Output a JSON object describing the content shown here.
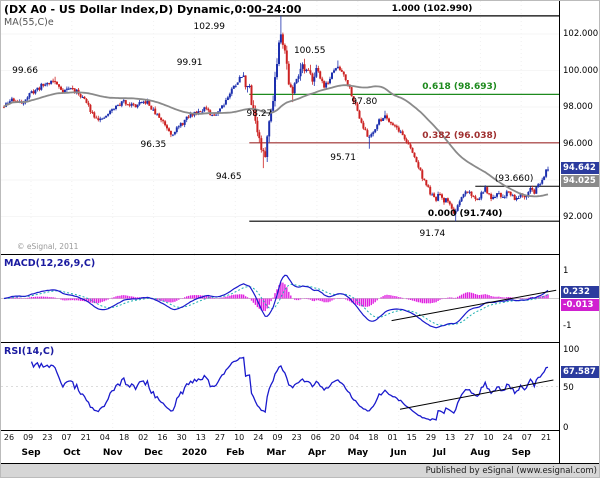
{
  "title": "(DX A0 - US Dollar Index,D) Dynamic,0:00-24:00",
  "overlays": {
    "ma_label": "MA(55,C)e"
  },
  "panels": {
    "macd_label": "MACD(12,26,9,C)",
    "rsi_label": "RSI(14,C)"
  },
  "watermark": "© eSignal, 2011",
  "footer": {
    "published": "Published by eSignal (www.esignal.com)"
  },
  "colors": {
    "up": "#1c2fae",
    "down": "#cc2222",
    "ma": "#8a8a8a",
    "macd_line": "#1a1acc",
    "macd_signal": "#1db0b0",
    "macd_hist": "#e020e0",
    "rsi_line": "#1a1acc",
    "badge_blue": "#2b3b9e",
    "badge_gray": "#8a8a8a",
    "badge_magenta": "#d020d0"
  },
  "axes": {
    "price_ticks": [
      {
        "label": "102.000",
        "value": 102
      },
      {
        "label": "100.000",
        "value": 100
      },
      {
        "label": "98.000",
        "value": 98
      },
      {
        "label": "96.000",
        "value": 96
      },
      {
        "label": "94.000",
        "value": 94
      },
      {
        "label": "92.000",
        "value": 92
      }
    ],
    "macd_ticks": [
      {
        "label": "1",
        "value": 1
      },
      {
        "label": "-1",
        "value": -1
      }
    ],
    "rsi_ticks": [
      {
        "label": "100",
        "value": 100
      },
      {
        "label": "50",
        "value": 50
      },
      {
        "label": "0",
        "value": 0
      }
    ]
  },
  "badges": {
    "price": {
      "label": "94.642",
      "value": 94.642
    },
    "ma": {
      "label": "94.025",
      "value": 94.025
    },
    "macd": {
      "label": "0.232",
      "value": 0.232
    },
    "macd_hist": {
      "label": "-0.013",
      "value": -0.013
    },
    "rsi": {
      "label": "67.587",
      "value": 67.587
    }
  },
  "xaxis": {
    "dates": [
      "26",
      "09",
      "23",
      "07",
      "21",
      "04",
      "18",
      "02",
      "16",
      "30",
      "13",
      "27",
      "10",
      "24",
      "09",
      "23",
      "06",
      "20",
      "04",
      "18",
      "01",
      "15",
      "29",
      "13",
      "27",
      "10",
      "24",
      "07",
      "21"
    ],
    "months": [
      "Sep",
      "Oct",
      "Nov",
      "Dec",
      "2020",
      "Feb",
      "Mar",
      "Apr",
      "May",
      "Jun",
      "Jul",
      "Aug",
      "Sep"
    ]
  },
  "chart_data": {
    "type": "candlestick",
    "title": "DX A0 - US Dollar Index, Daily, with MA(55), MACD(12,26,9), RSI(14)",
    "ylim": [
      89.9,
      103.5
    ],
    "y_ticks": [
      92,
      94,
      96,
      98,
      100,
      102
    ],
    "f_end": 0.975,
    "anchors": [
      [
        0,
        98
      ],
      [
        0.015,
        98.45
      ],
      [
        0.03,
        98.2
      ],
      [
        0.05,
        98.8
      ],
      [
        0.07,
        99.2
      ],
      [
        0.088,
        99.45
      ],
      [
        0.105,
        98.9
      ],
      [
        0.12,
        99.05
      ],
      [
        0.14,
        98.6
      ],
      [
        0.16,
        97.6
      ],
      [
        0.175,
        97.25
      ],
      [
        0.195,
        97.9
      ],
      [
        0.215,
        98.3
      ],
      [
        0.235,
        98.05
      ],
      [
        0.255,
        98.3
      ],
      [
        0.27,
        97.7
      ],
      [
        0.285,
        97.2
      ],
      [
        0.3,
        96.55
      ],
      [
        0.315,
        96.95
      ],
      [
        0.33,
        97.45
      ],
      [
        0.345,
        97.75
      ],
      [
        0.36,
        97.95
      ],
      [
        0.372,
        97.45
      ],
      [
        0.385,
        97.85
      ],
      [
        0.4,
        98.5
      ],
      [
        0.415,
        99.3
      ],
      [
        0.428,
        99.75
      ],
      [
        0.44,
        98.9
      ],
      [
        0.45,
        97.4
      ],
      [
        0.46,
        95.8
      ],
      [
        0.466,
        95.1
      ],
      [
        0.474,
        96.8
      ],
      [
        0.482,
        98.6
      ],
      [
        0.49,
        100.8
      ],
      [
        0.496,
        102.3
      ],
      [
        0.503,
        101.2
      ],
      [
        0.511,
        99.3
      ],
      [
        0.517,
        98.6
      ],
      [
        0.525,
        99.8
      ],
      [
        0.533,
        100.3
      ],
      [
        0.541,
        99.9
      ],
      [
        0.55,
        99.55
      ],
      [
        0.558,
        100.1
      ],
      [
        0.566,
        99.7
      ],
      [
        0.575,
        99.1
      ],
      [
        0.585,
        99.6
      ],
      [
        0.595,
        100.2
      ],
      [
        0.608,
        99.9
      ],
      [
        0.62,
        99
      ],
      [
        0.632,
        97.9
      ],
      [
        0.643,
        97
      ],
      [
        0.652,
        96.3
      ],
      [
        0.662,
        96.7
      ],
      [
        0.672,
        97.2
      ],
      [
        0.682,
        97.55
      ],
      [
        0.694,
        97.15
      ],
      [
        0.705,
        96.85
      ],
      [
        0.716,
        96.4
      ],
      [
        0.727,
        95.8
      ],
      [
        0.738,
        95.1
      ],
      [
        0.748,
        94.3
      ],
      [
        0.757,
        93.7
      ],
      [
        0.765,
        93.25
      ],
      [
        0.773,
        92.85
      ],
      [
        0.78,
        93.3
      ],
      [
        0.787,
        92.75
      ],
      [
        0.794,
        93.05
      ],
      [
        0.801,
        92.45
      ],
      [
        0.808,
        92.2
      ],
      [
        0.815,
        92.6
      ],
      [
        0.822,
        93.1
      ],
      [
        0.83,
        93.45
      ],
      [
        0.838,
        93.2
      ],
      [
        0.846,
        92.85
      ],
      [
        0.854,
        93.2
      ],
      [
        0.862,
        93.5
      ],
      [
        0.87,
        93.15
      ],
      [
        0.878,
        92.9
      ],
      [
        0.886,
        93.3
      ],
      [
        0.894,
        93.05
      ],
      [
        0.902,
        93.4
      ],
      [
        0.91,
        93.2
      ],
      [
        0.918,
        92.95
      ],
      [
        0.926,
        93.35
      ],
      [
        0.934,
        93.1
      ],
      [
        0.942,
        93.55
      ],
      [
        0.95,
        93.3
      ],
      [
        0.958,
        93.75
      ],
      [
        0.966,
        94.2
      ],
      [
        0.975,
        94.64
      ]
    ],
    "pivots": [
      {
        "f": 0.09,
        "price": 99.66,
        "side": "high",
        "label": "99.66",
        "lf": 0.02,
        "dy": -10
      },
      {
        "f": 0.3,
        "price": 96.35,
        "side": "low",
        "label": "96.35",
        "lf": 0.25,
        "dy": 4
      },
      {
        "f": 0.428,
        "price": 99.91,
        "side": "high",
        "label": "99.91",
        "lf": 0.315,
        "dy": -13
      },
      {
        "f": 0.466,
        "price": 94.65,
        "side": "low",
        "label": "94.65",
        "lf": 0.385,
        "dy": 5
      },
      {
        "f": 0.496,
        "price": 102.99,
        "side": "high",
        "label": "102.99",
        "lf": 0.345,
        "dy": 7
      },
      {
        "f": 0.517,
        "price": 98.27,
        "side": "low",
        "label": "98.27",
        "lf": 0.44,
        "dy": 8
      },
      {
        "f": 0.598,
        "price": 100.55,
        "side": "high",
        "label": "100.55",
        "lf": 0.525,
        "dy": -13
      },
      {
        "f": 0.653,
        "price": 95.71,
        "side": "low",
        "label": "95.71",
        "lf": 0.59,
        "dy": 5
      },
      {
        "f": 0.684,
        "price": 97.8,
        "side": "high",
        "label": "97.80",
        "lf": 0.628,
        "dy": -13
      },
      {
        "f": 0.81,
        "price": 91.74,
        "side": "low",
        "label": "91.74",
        "lf": 0.75,
        "dy": 9
      }
    ],
    "fib_levels": [
      {
        "label": "1.000 (102.990)",
        "value": 102.99,
        "color": "#000000",
        "lf": 0.7
      },
      {
        "label": "0.618 (98.693)",
        "value": 98.693,
        "color": "#1e8a1e",
        "lf": 0.755
      },
      {
        "label": "0.382 (96.038)",
        "value": 96.038,
        "color": "#a03030",
        "lf": 0.755
      },
      {
        "label": "0.000 (91.740)",
        "value": 91.74,
        "color": "#000000",
        "lf": 0.765
      }
    ],
    "fib_span_start": 0.445,
    "support_line": {
      "label": "(93.660)",
      "value": 93.66,
      "lf": 0.885,
      "span": [
        0.85,
        1.0
      ]
    },
    "indicators": {
      "ma": {
        "period": 55,
        "last": 94.025
      },
      "macd": {
        "fast": 12,
        "slow": 26,
        "signal": 9,
        "last": 0.232,
        "last_hist": -0.013,
        "range": [
          -1.45,
          1.45
        ]
      },
      "rsi": {
        "period": 14,
        "last": 67.587,
        "range": [
          0,
          100
        ]
      }
    },
    "trendlines": [
      {
        "panel": "macd",
        "f1": 0.7,
        "v1": -0.8,
        "f2": 0.995,
        "v2": 0.3
      },
      {
        "panel": "rsi",
        "f1": 0.715,
        "v1": 22,
        "f2": 0.99,
        "v2": 58
      }
    ]
  }
}
